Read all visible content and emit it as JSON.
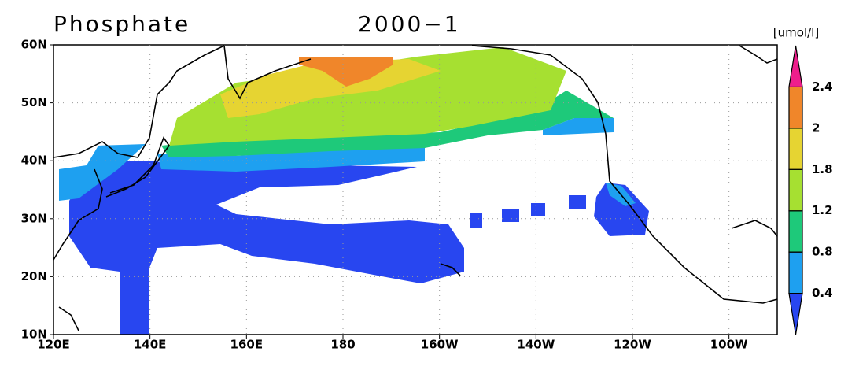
{
  "title": "Phosphate",
  "period": "2000−1",
  "units": "[umol/l]",
  "lat_labels": [
    "60N",
    "50N",
    "40N",
    "30N",
    "20N",
    "10N"
  ],
  "lon_labels": [
    "120E",
    "140E",
    "160E",
    "180",
    "160W",
    "140W",
    "120W",
    "100W"
  ],
  "colorbar": {
    "levels": [
      0.4,
      0.8,
      1.2,
      1.8,
      2,
      2.4
    ],
    "colors": [
      "#2846f0",
      "#1ea0f0",
      "#1ec97a",
      "#a6e031",
      "#e6d432",
      "#f0862a",
      "#ee1e8c"
    ]
  }
}
